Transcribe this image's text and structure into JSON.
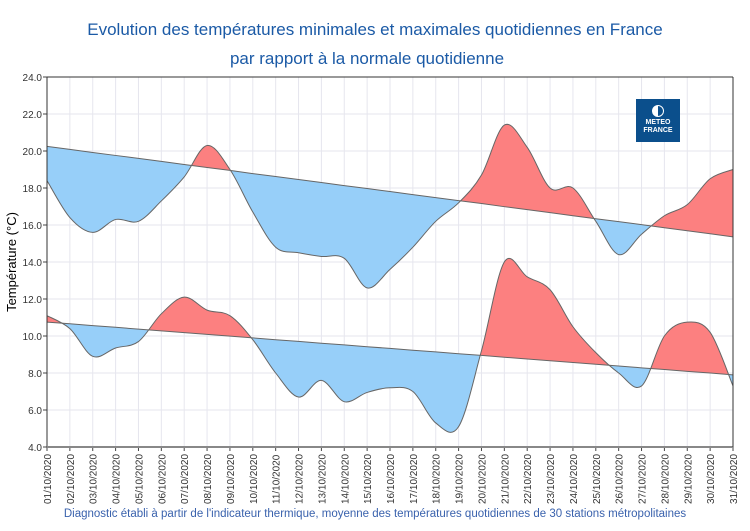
{
  "title_line1": "Evolution des températures minimales et maximales quotidiennes en France",
  "title_line2": "par rapport à la normale quotidienne",
  "footer": "Diagnostic établi à partir de l'indicateur thermique, moyenne des températures quotidiennes de 30 stations métropolitaines",
  "logo_text": [
    "METEO",
    "FRANCE"
  ],
  "colors": {
    "above_normal": "#fc8080",
    "below_normal": "#97cff9",
    "line": "#666666",
    "title": "#1b5aa6"
  },
  "chart_data": {
    "type": "area",
    "ylabel": "Température (°C)",
    "ylim": [
      4.0,
      24.0
    ],
    "yticks": [
      "4.0",
      "6.0",
      "8.0",
      "10.0",
      "12.0",
      "14.0",
      "16.0",
      "18.0",
      "20.0",
      "22.0",
      "24.0"
    ],
    "grid": true,
    "categories": [
      "01/10/2020",
      "02/10/2020",
      "03/10/2020",
      "04/10/2020",
      "05/10/2020",
      "06/10/2020",
      "07/10/2020",
      "08/10/2020",
      "09/10/2020",
      "10/10/2020",
      "11/10/2020",
      "12/10/2020",
      "13/10/2020",
      "14/10/2020",
      "15/10/2020",
      "16/10/2020",
      "17/10/2020",
      "18/10/2020",
      "19/10/2020",
      "20/10/2020",
      "21/10/2020",
      "22/10/2020",
      "23/10/2020",
      "24/10/2020",
      "25/10/2020",
      "26/10/2020",
      "27/10/2020",
      "28/10/2020",
      "29/10/2020",
      "30/10/2020",
      "31/10/2020"
    ],
    "series": [
      {
        "key": "tmax",
        "values": [
          18.4,
          16.4,
          15.6,
          16.3,
          16.2,
          17.3,
          18.6,
          20.3,
          19.0,
          16.7,
          14.8,
          14.5,
          14.3,
          14.2,
          12.6,
          13.6,
          14.8,
          16.2,
          17.2,
          18.7,
          21.4,
          20.2,
          18.0,
          18.0,
          16.2,
          14.4,
          15.5,
          16.5,
          17.1,
          18.5,
          19.0
        ]
      },
      {
        "key": "tmax_normal",
        "values": [
          20.25,
          20.09,
          19.92,
          19.76,
          19.6,
          19.44,
          19.27,
          19.11,
          18.95,
          18.78,
          18.62,
          18.46,
          18.3,
          18.13,
          17.97,
          17.81,
          17.64,
          17.48,
          17.32,
          17.16,
          16.99,
          16.83,
          16.67,
          16.5,
          16.34,
          16.18,
          16.02,
          15.85,
          15.69,
          15.53,
          15.36
        ]
      },
      {
        "key": "tmin",
        "values": [
          11.1,
          10.4,
          8.9,
          9.35,
          9.7,
          11.2,
          12.1,
          11.4,
          11.1,
          9.8,
          8.0,
          6.7,
          7.6,
          6.45,
          6.95,
          7.2,
          7.0,
          5.3,
          5.1,
          9.2,
          14.0,
          13.2,
          12.5,
          10.5,
          9.1,
          8.0,
          7.3,
          10.0,
          10.75,
          10.2,
          7.3
        ]
      },
      {
        "key": "tmin_normal",
        "values": [
          10.75,
          10.66,
          10.56,
          10.47,
          10.37,
          10.28,
          10.18,
          10.09,
          9.99,
          9.9,
          9.8,
          9.71,
          9.61,
          9.52,
          9.42,
          9.33,
          9.23,
          9.14,
          9.04,
          8.95,
          8.85,
          8.76,
          8.66,
          8.57,
          8.47,
          8.38,
          8.28,
          8.19,
          8.09,
          8.0,
          7.9
        ]
      }
    ]
  }
}
